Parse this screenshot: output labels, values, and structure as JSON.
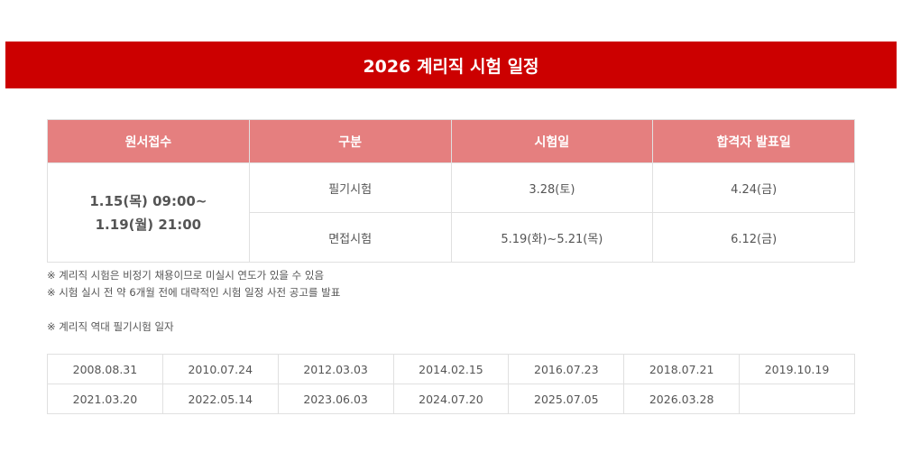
{
  "title": "2026 계리직 시험 일정",
  "schedule": {
    "headers": [
      "원서접수",
      "구분",
      "시험일",
      "합격자 발표일"
    ],
    "application_line1": "1.15(목) 09:00~",
    "application_line2": "1.19(월) 21:00",
    "rows": [
      {
        "type": "필기시험",
        "exam_date": "3.28(토)",
        "result_date": "4.24(금)"
      },
      {
        "type": "면접시험",
        "exam_date": "5.19(화)~5.21(목)",
        "result_date": "6.12(금)"
      }
    ]
  },
  "notes": [
    "※ 계리직 시험은 비정기 채용이므로 미실시 연도가 있을 수 있음",
    "※ 시험 실시 전 약 6개월 전에 대략적인 시험 일정 사전 공고를 발표",
    "",
    "※ 계리직 역대 필기시험 일자"
  ],
  "history": [
    [
      "2008.08.31",
      "2010.07.24",
      "2012.03.03",
      "2014.02.15",
      "2016.07.23",
      "2018.07.21",
      "2019.10.19"
    ],
    [
      "2021.03.20",
      "2022.05.14",
      "2023.06.03",
      "2024.07.20",
      "2025.07.05",
      "2026.03.28",
      ""
    ]
  ]
}
